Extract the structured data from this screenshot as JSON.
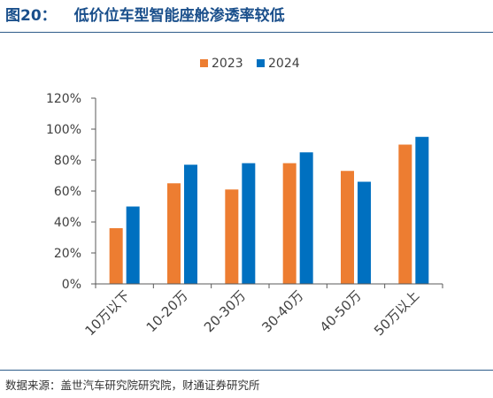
{
  "figure": {
    "label": "图20：",
    "title": "低价位车型智能座舱渗透率较低"
  },
  "source_note": "数据来源：盖世汽车研究院研究院，财通证券研究所",
  "colors": {
    "series_2023": "#ed7d31",
    "series_2024": "#0070c0",
    "axis": "#595959",
    "text": "#404040",
    "rule": "#2e5c8a"
  },
  "chart_data": {
    "type": "bar",
    "categories": [
      "10万以下",
      "10-20万",
      "20-30万",
      "30-40万",
      "40-50万",
      "50万以上"
    ],
    "series": [
      {
        "name": "2023",
        "values": [
          36,
          65,
          61,
          78,
          73,
          90
        ]
      },
      {
        "name": "2024",
        "values": [
          50,
          77,
          78,
          85,
          66,
          95
        ]
      }
    ],
    "ylim": [
      0,
      120
    ],
    "yticks": [
      "0%",
      "20%",
      "40%",
      "60%",
      "80%",
      "100%",
      "120%"
    ],
    "ytick_values": [
      0,
      20,
      40,
      60,
      80,
      100,
      120
    ],
    "legend_position": "top-center",
    "grid": false
  }
}
